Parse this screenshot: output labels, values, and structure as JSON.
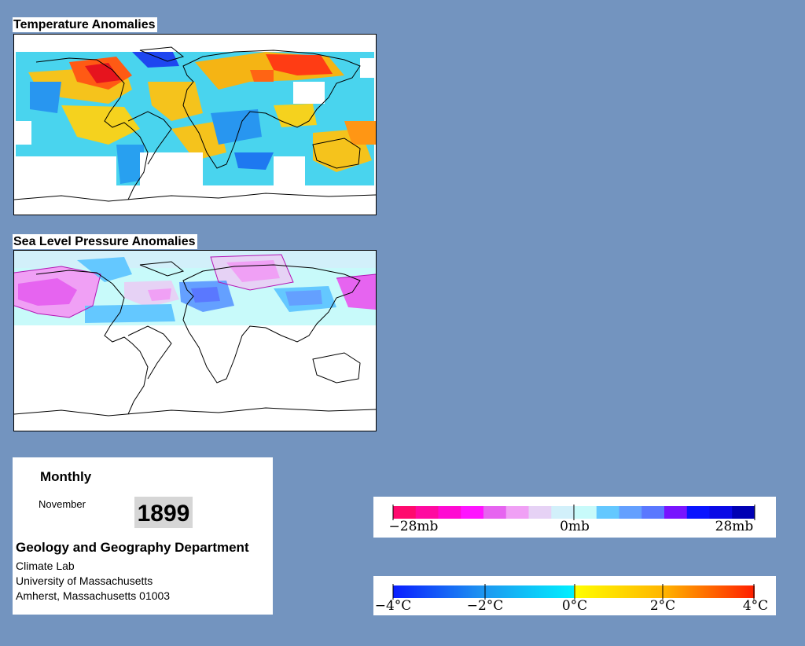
{
  "temperature": {
    "title": "Temperature Anomalies"
  },
  "pressure": {
    "title": "Sea Level Pressure Anomalies"
  },
  "info": {
    "period": "Monthly",
    "month": "November",
    "year": "1899",
    "department": "Geology and Geography Department",
    "lab": "Climate Lab",
    "university": "University of Massachusetts",
    "address": "Amherst, Massachusetts 01003"
  },
  "pressure_legend": {
    "labels": [
      "−28mb",
      "0mb",
      "28mb"
    ],
    "colors": [
      "#ff0a6e",
      "#ff0aa0",
      "#ff0ad2",
      "#ff14ff",
      "#e664f0",
      "#f0a0f5",
      "#e6d2f5",
      "#d2f0fa",
      "#c8fafa",
      "#64c8ff",
      "#64a0ff",
      "#5a78ff",
      "#7814ff",
      "#0a14ff",
      "#0a0ae6",
      "#0000b4"
    ]
  },
  "temperature_legend": {
    "labels": [
      "−4°C",
      "−2°C",
      "0°C",
      "2°C",
      "4°C"
    ]
  }
}
